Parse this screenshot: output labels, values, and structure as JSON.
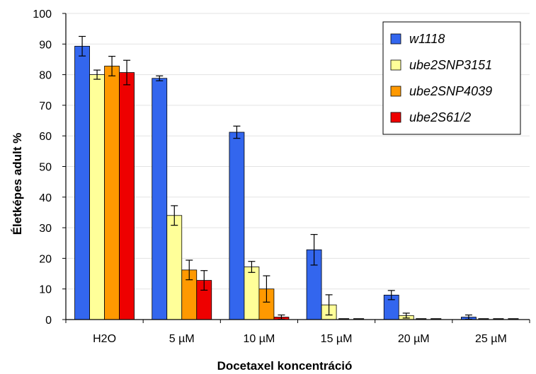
{
  "chart_data": {
    "type": "bar",
    "title": "",
    "xlabel": "Docetaxel koncentráció",
    "ylabel": "Életképes  adult %",
    "ylim": [
      0,
      100
    ],
    "yticks": [
      0,
      10,
      20,
      30,
      40,
      50,
      60,
      70,
      80,
      90,
      100
    ],
    "grid": true,
    "legend_position": "top-right",
    "categories": [
      "H2O",
      "5 µM",
      "10 µM",
      "15 µM",
      "20 µM",
      "25 µM"
    ],
    "series": [
      {
        "name": "w1118",
        "color": "#3366ee",
        "values": [
          89.3,
          78.8,
          61.2,
          22.8,
          8.0,
          0.8
        ],
        "errors": [
          3.2,
          0.8,
          2.0,
          5.0,
          1.5,
          0.7
        ]
      },
      {
        "name": "ube2SNP3151",
        "color": "#ffff99",
        "values": [
          80.0,
          34.0,
          17.2,
          4.8,
          1.3,
          0
        ],
        "errors": [
          1.5,
          3.2,
          1.8,
          3.3,
          0.8,
          0
        ]
      },
      {
        "name": "ube2SNP4039",
        "color": "#ff9900",
        "values": [
          82.8,
          16.2,
          10.0,
          0,
          0,
          0
        ],
        "errors": [
          3.2,
          3.2,
          4.3,
          0,
          0,
          0
        ]
      },
      {
        "name": "ube2S61/2",
        "color": "#ee0000",
        "values": [
          80.7,
          12.8,
          0.8,
          0,
          0,
          0
        ],
        "errors": [
          4.0,
          3.2,
          0.7,
          0,
          0,
          0
        ]
      }
    ]
  }
}
